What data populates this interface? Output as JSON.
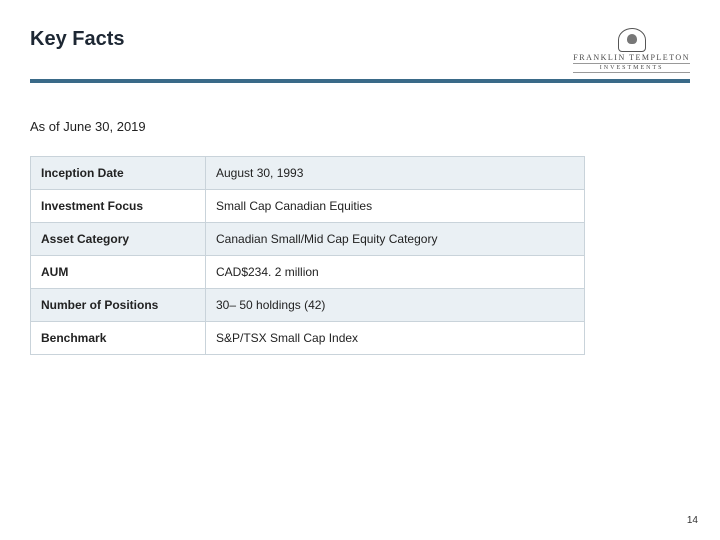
{
  "title": "Key Facts",
  "logo": {
    "line1": "FRANKLIN TEMPLETON",
    "line2": "INVESTMENTS"
  },
  "as_of": "As of June 30, 2019",
  "table": {
    "rows": [
      {
        "label": "Inception Date",
        "value": "August 30, 1993"
      },
      {
        "label": "Investment Focus",
        "value": "Small Cap Canadian Equities"
      },
      {
        "label": "Asset Category",
        "value": "Canadian Small/Mid Cap Equity Category"
      },
      {
        "label": "AUM",
        "value": "CAD$234. 2 million"
      },
      {
        "label": "Number of Positions",
        "value": "30– 50 holdings (42)"
      },
      {
        "label": "Benchmark",
        "value": "S&P/TSX Small Cap Index"
      }
    ]
  },
  "page_number": "14",
  "colors": {
    "rule": "#3a6a88",
    "row_alt_bg": "#eaf0f4",
    "border": "#c9d3da"
  }
}
